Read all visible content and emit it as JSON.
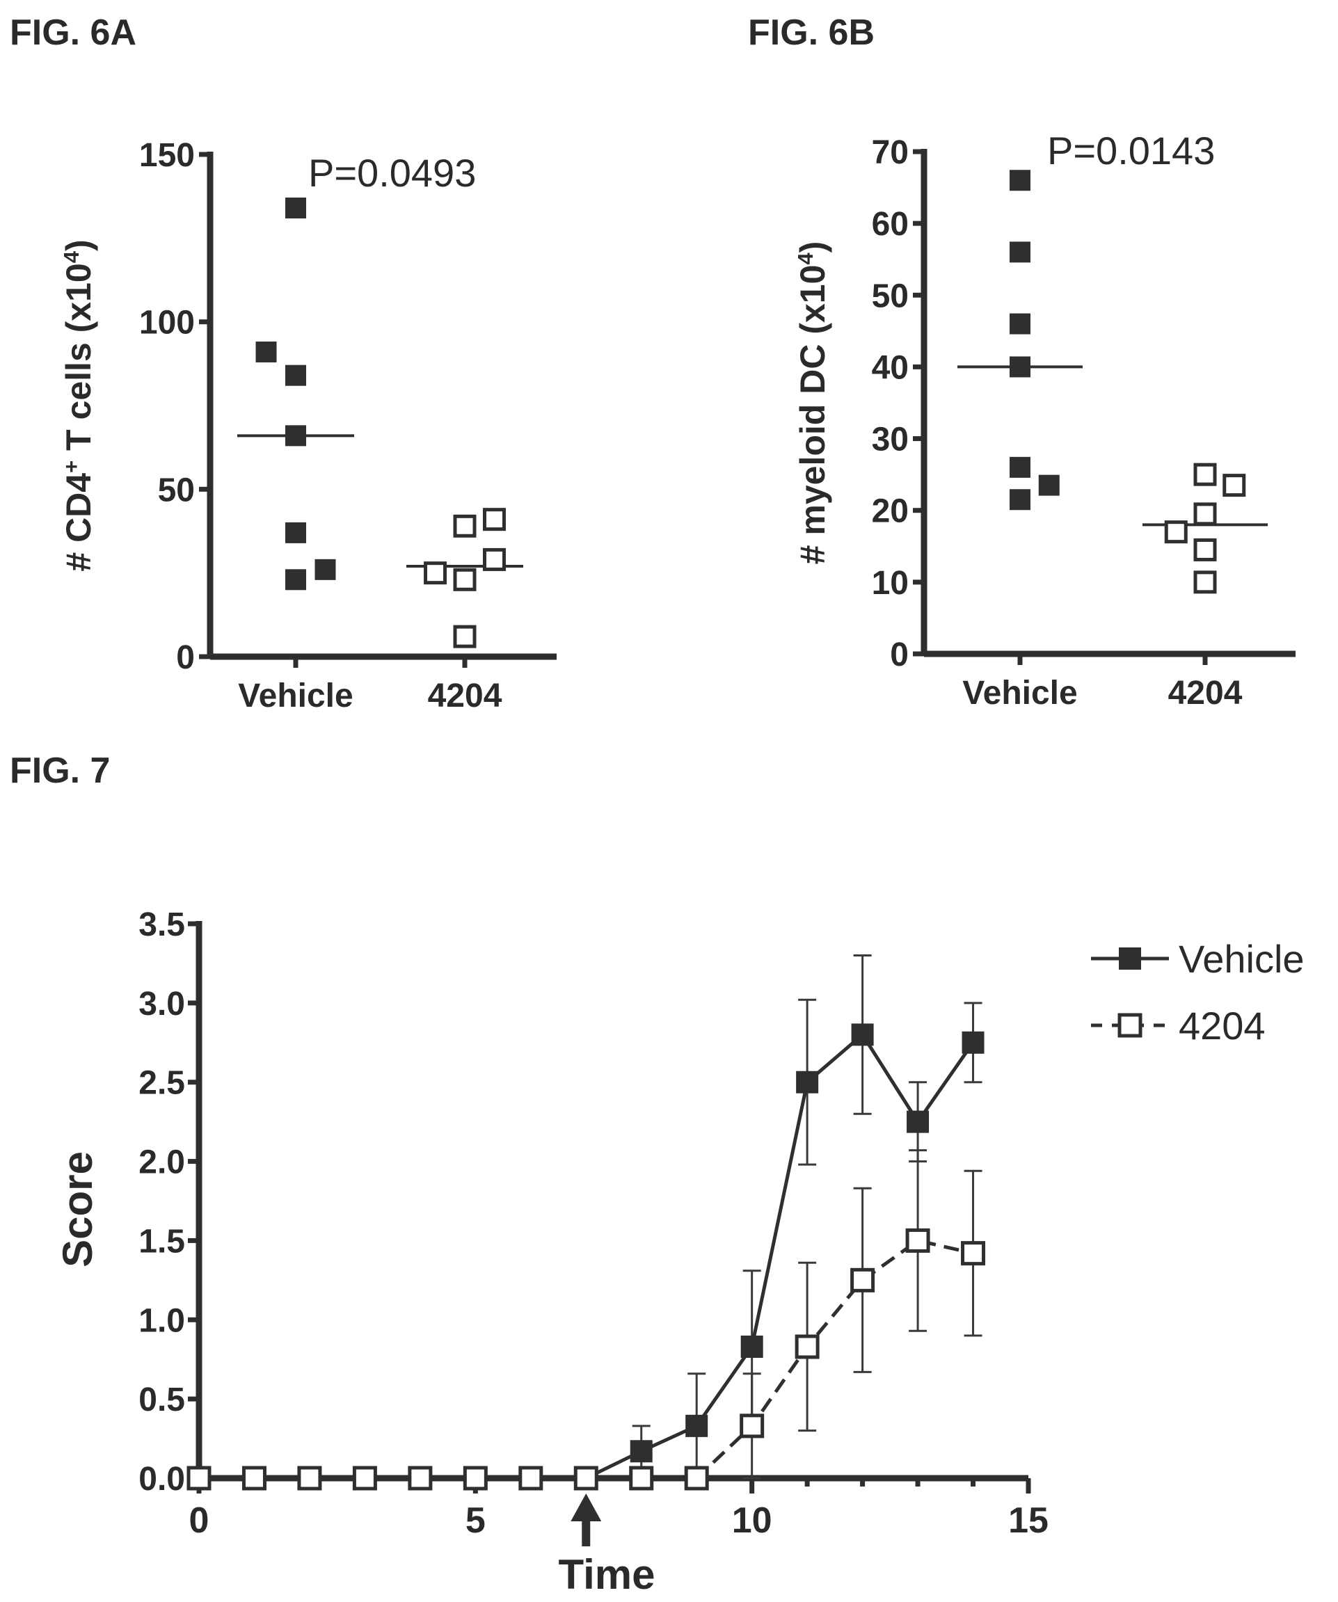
{
  "figure_labels": {
    "fig6a": "FIG. 6A",
    "fig6b": "FIG. 6B",
    "fig7": "FIG. 7"
  },
  "chart_data": [
    {
      "id": "fig6a",
      "type": "scatter",
      "title": "",
      "ylabel": "# CD4+ T cells (x10^4)",
      "ylabel_parts": {
        "pre": "# CD4",
        "sup1": "+",
        "mid": " T cells (x10",
        "sup2": "4",
        "post": ")"
      },
      "ylim": [
        0,
        150
      ],
      "yticks": [
        0,
        50,
        100,
        150
      ],
      "categories": [
        "Vehicle",
        "4204"
      ],
      "annotation": "P=0.0493",
      "series": [
        {
          "name": "Vehicle",
          "marker": "filled-square",
          "points": [
            [
              -0.18,
              91
            ],
            [
              0,
              134
            ],
            [
              0,
              84
            ],
            [
              0,
              66
            ],
            [
              0,
              37
            ],
            [
              0,
              23
            ],
            [
              0.18,
              26
            ]
          ],
          "median": 66
        },
        {
          "name": "4204",
          "marker": "open-square",
          "points": [
            [
              -0.18,
              25
            ],
            [
              0,
              39
            ],
            [
              0,
              23
            ],
            [
              0,
              6
            ],
            [
              0.18,
              41
            ],
            [
              0.18,
              29
            ]
          ],
          "median": 27
        }
      ]
    },
    {
      "id": "fig6b",
      "type": "scatter",
      "title": "",
      "ylabel": "# myeloid DC (x10^4)",
      "ylabel_parts": {
        "pre": "# myeloid DC (x10",
        "sup1": "",
        "mid": "",
        "sup2": "4",
        "post": ")"
      },
      "ylim": [
        0,
        70
      ],
      "yticks": [
        0,
        10,
        20,
        30,
        40,
        50,
        60,
        70
      ],
      "categories": [
        "Vehicle",
        "4204"
      ],
      "annotation": "P=0.0143",
      "series": [
        {
          "name": "Vehicle",
          "marker": "filled-square",
          "points": [
            [
              0,
              66
            ],
            [
              0,
              56
            ],
            [
              0,
              46
            ],
            [
              0,
              40
            ],
            [
              0,
              26
            ],
            [
              0,
              21.5
            ],
            [
              0.18,
              23.5
            ]
          ],
          "median": 40
        },
        {
          "name": "4204",
          "marker": "open-square",
          "points": [
            [
              -0.18,
              17
            ],
            [
              0,
              25
            ],
            [
              0,
              19.5
            ],
            [
              0,
              14.5
            ],
            [
              0,
              10
            ],
            [
              0.18,
              23.5
            ]
          ],
          "median": 18
        }
      ]
    },
    {
      "id": "fig7",
      "type": "line",
      "title": "",
      "xlabel": "Time",
      "ylabel": "Score",
      "xlim": [
        0,
        15
      ],
      "ylim": [
        0,
        3.5
      ],
      "xticks": [
        0,
        5,
        10,
        15
      ],
      "yticks": [
        "0.0",
        "0.5",
        "1.0",
        "1.5",
        "2.0",
        "2.5",
        "3.0",
        "3.5"
      ],
      "arrow_at_x": 7,
      "legend": "right",
      "series": [
        {
          "name": "Vehicle",
          "marker": "filled-square",
          "dash": "solid",
          "x": [
            0,
            1,
            2,
            3,
            4,
            5,
            6,
            7,
            8,
            9,
            10,
            11,
            12,
            13,
            14
          ],
          "y": [
            0,
            0,
            0,
            0,
            0,
            0,
            0,
            0,
            0.17,
            0.33,
            0.83,
            2.5,
            2.8,
            2.25,
            2.75
          ],
          "err": [
            0,
            0,
            0,
            0,
            0,
            0,
            0,
            0,
            0.16,
            0.33,
            0.48,
            0.52,
            0.5,
            0.25,
            0.25
          ]
        },
        {
          "name": "4204",
          "marker": "open-square",
          "dash": "dashed",
          "x": [
            0,
            1,
            2,
            3,
            4,
            5,
            6,
            7,
            8,
            9,
            10,
            11,
            12,
            13,
            14
          ],
          "y": [
            0,
            0,
            0,
            0,
            0,
            0,
            0,
            0,
            0,
            0,
            0.33,
            0.83,
            1.25,
            1.5,
            1.42
          ],
          "err": [
            0,
            0,
            0,
            0,
            0,
            0,
            0,
            0,
            0,
            0,
            0.33,
            0.53,
            0.58,
            0.57,
            0.52
          ]
        }
      ]
    }
  ]
}
